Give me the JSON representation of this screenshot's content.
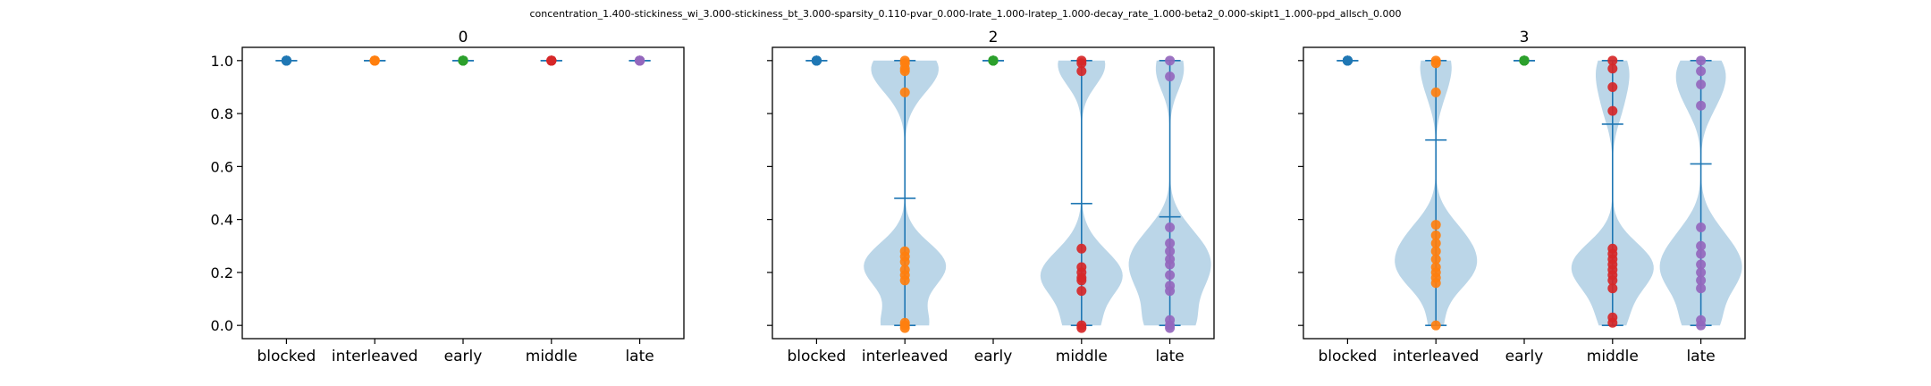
{
  "figure": {
    "suptitle": "concentration_1.400-stickiness_wi_3.000-stickiness_bt_3.000-sparsity_0.110-pvar_0.000-lrate_1.000-lratep_1.000-decay_rate_1.000-beta2_0.000-skipt1_1.000-ppd_allsch_0.000"
  },
  "colors": {
    "blocked": "#1f77b4",
    "interleaved": "#ff7f0e",
    "early": "#2ca02c",
    "middle": "#d62728",
    "late": "#9467bd",
    "violin_fill": "#1f77b4",
    "violin_line": "#1f77b4"
  },
  "chart_data": [
    {
      "type": "violin",
      "title": "0",
      "categories": [
        "blocked",
        "interleaved",
        "early",
        "middle",
        "late"
      ],
      "ylim": [
        -0.05,
        1.05
      ],
      "yticks": [
        "0.0",
        "0.2",
        "0.4",
        "0.6",
        "0.8",
        "1.0"
      ],
      "show_ytick_labels": true,
      "series": [
        {
          "category": "blocked",
          "points": [
            1,
            1,
            1,
            1,
            1,
            1,
            1,
            1,
            1,
            1
          ],
          "min": 1.0,
          "max": 1.0,
          "mean": 1.0,
          "violin": false
        },
        {
          "category": "interleaved",
          "points": [
            1,
            1,
            1,
            1,
            1,
            1,
            1,
            1,
            1,
            1
          ],
          "min": 1.0,
          "max": 1.0,
          "mean": 1.0,
          "violin": false
        },
        {
          "category": "early",
          "points": [
            1,
            1,
            1,
            1,
            1,
            1,
            1,
            1,
            1,
            1
          ],
          "min": 1.0,
          "max": 1.0,
          "mean": 1.0,
          "violin": false
        },
        {
          "category": "middle",
          "points": [
            1,
            1,
            1,
            1,
            1,
            1,
            1,
            1,
            1,
            1
          ],
          "min": 1.0,
          "max": 1.0,
          "mean": 1.0,
          "violin": false
        },
        {
          "category": "late",
          "points": [
            1,
            1,
            1,
            1,
            1,
            1,
            1,
            1,
            1,
            1
          ],
          "min": 1.0,
          "max": 1.0,
          "mean": 1.0,
          "violin": false
        }
      ]
    },
    {
      "type": "violin",
      "title": "2",
      "categories": [
        "blocked",
        "interleaved",
        "early",
        "middle",
        "late"
      ],
      "ylim": [
        -0.05,
        1.05
      ],
      "yticks": [
        "0.0",
        "0.2",
        "0.4",
        "0.6",
        "0.8",
        "1.0"
      ],
      "show_ytick_labels": false,
      "series": [
        {
          "category": "blocked",
          "points": [
            1,
            1,
            1,
            1,
            1,
            1,
            1,
            1,
            1,
            1
          ],
          "min": 1.0,
          "max": 1.0,
          "mean": 1.0,
          "violin": false
        },
        {
          "category": "interleaved",
          "points": [
            1.0,
            0.99,
            0.97,
            0.96,
            0.88,
            0.28,
            0.26,
            0.24,
            0.21,
            0.19,
            0.17,
            0.01,
            0.0,
            -0.01
          ],
          "min": 0.0,
          "max": 1.0,
          "mean": 0.48,
          "violin": true
        },
        {
          "category": "early",
          "points": [
            1,
            1,
            1,
            1,
            1,
            1,
            1,
            1,
            1,
            1
          ],
          "min": 1.0,
          "max": 1.0,
          "mean": 1.0,
          "violin": false
        },
        {
          "category": "middle",
          "points": [
            1.0,
            0.99,
            0.96,
            0.29,
            0.22,
            0.2,
            0.18,
            0.17,
            0.13,
            0.0,
            -0.01
          ],
          "min": 0.0,
          "max": 1.0,
          "mean": 0.46,
          "violin": true
        },
        {
          "category": "late",
          "points": [
            1.0,
            0.94,
            0.37,
            0.31,
            0.28,
            0.25,
            0.23,
            0.19,
            0.15,
            0.13,
            0.02,
            0.0,
            -0.01
          ],
          "min": 0.0,
          "max": 1.0,
          "mean": 0.41,
          "violin": true
        }
      ]
    },
    {
      "type": "violin",
      "title": "3",
      "categories": [
        "blocked",
        "interleaved",
        "early",
        "middle",
        "late"
      ],
      "ylim": [
        -0.05,
        1.05
      ],
      "yticks": [
        "0.0",
        "0.2",
        "0.4",
        "0.6",
        "0.8",
        "1.0"
      ],
      "show_ytick_labels": false,
      "series": [
        {
          "category": "blocked",
          "points": [
            1,
            1,
            1,
            1,
            1,
            1,
            1,
            1,
            1,
            1
          ],
          "min": 1.0,
          "max": 1.0,
          "mean": 1.0,
          "violin": false
        },
        {
          "category": "interleaved",
          "points": [
            1.0,
            0.99,
            0.88,
            0.38,
            0.34,
            0.31,
            0.28,
            0.25,
            0.22,
            0.2,
            0.18,
            0.16,
            0.0
          ],
          "min": 0.0,
          "max": 1.0,
          "mean": 0.7,
          "violin": true
        },
        {
          "category": "early",
          "points": [
            1,
            1,
            1,
            1,
            1,
            1,
            1,
            1,
            1,
            1
          ],
          "min": 1.0,
          "max": 1.0,
          "mean": 1.0,
          "violin": false
        },
        {
          "category": "middle",
          "points": [
            1.0,
            0.97,
            0.9,
            0.81,
            0.29,
            0.27,
            0.25,
            0.23,
            0.21,
            0.19,
            0.17,
            0.14,
            0.03,
            0.01
          ],
          "min": 0.0,
          "max": 1.0,
          "mean": 0.76,
          "violin": true
        },
        {
          "category": "late",
          "points": [
            1.0,
            0.96,
            0.91,
            0.83,
            0.37,
            0.3,
            0.27,
            0.23,
            0.2,
            0.17,
            0.14,
            0.02,
            0.0
          ],
          "min": 0.0,
          "max": 1.0,
          "mean": 0.61,
          "violin": true
        }
      ]
    }
  ]
}
